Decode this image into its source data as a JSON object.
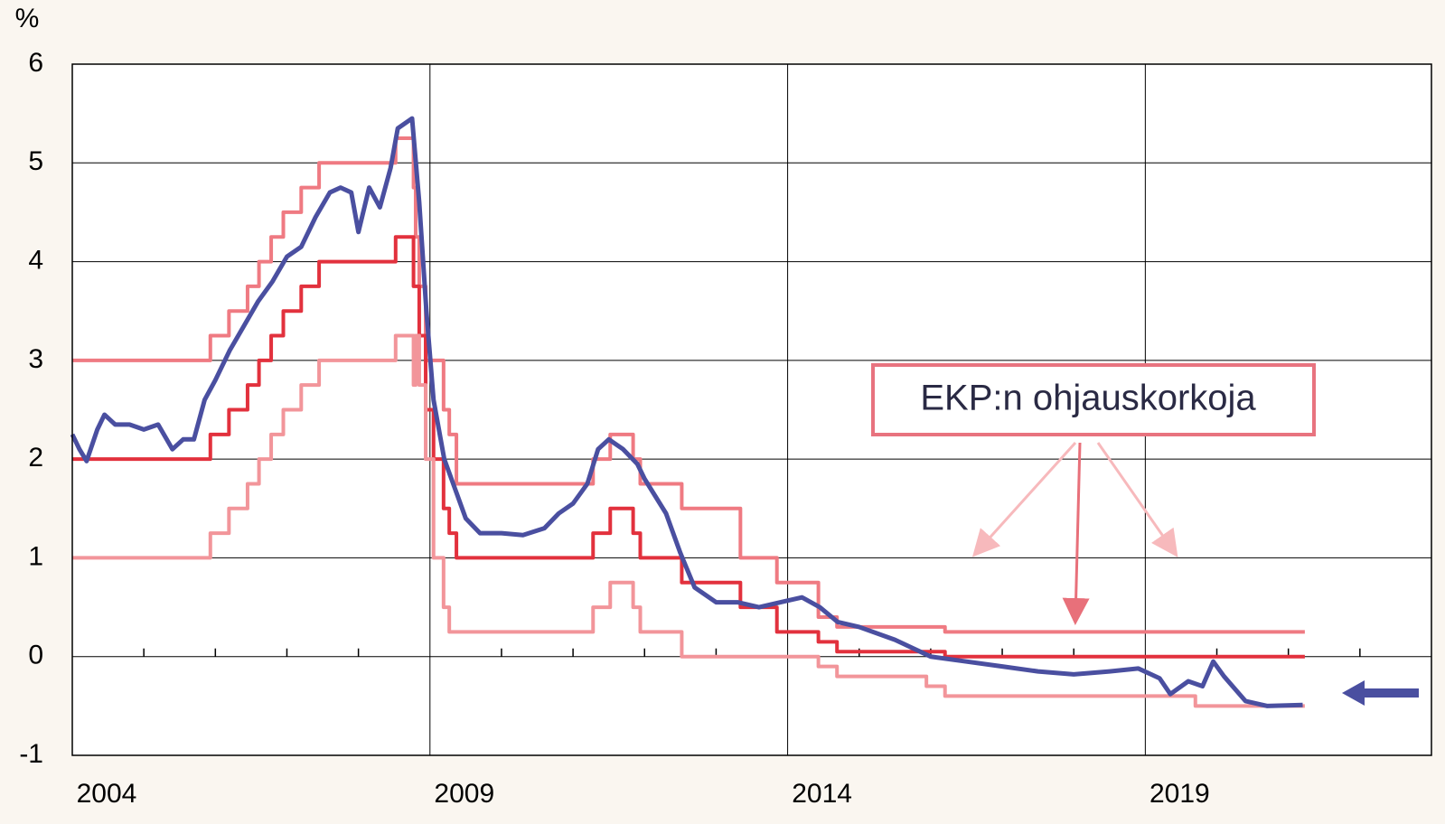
{
  "chart_data": {
    "type": "line",
    "y_label": "%",
    "annotation": "EKP:n ohjauskorkoja",
    "xlim": [
      2004,
      2023
    ],
    "xticks": [
      2004,
      2009,
      2014,
      2019
    ],
    "x_minor_ticks": [
      2005,
      2006,
      2007,
      2008,
      2010,
      2011,
      2012,
      2013,
      2015,
      2016,
      2017,
      2018,
      2020,
      2021,
      2022
    ],
    "ylim": [
      -1,
      6
    ],
    "yticks": [
      -1,
      0,
      1,
      2,
      3,
      4,
      5,
      6
    ],
    "grid": true,
    "series": [
      {
        "color": "#ef7a82",
        "step": true,
        "x": [
          2004,
          2005.93,
          2006.19,
          2006.45,
          2006.61,
          2006.78,
          2006.95,
          2007.2,
          2007.45,
          2008.52,
          2008.77,
          2008.8,
          2008.85,
          2008.94,
          2009.05,
          2009.19,
          2009.27,
          2009.37,
          2011.28,
          2011.52,
          2011.84,
          2011.94,
          2012.52,
          2013.34,
          2013.85,
          2014.43,
          2014.69,
          2016.2,
          2021.23
        ],
        "values": [
          3.0,
          3.25,
          3.5,
          3.75,
          4.0,
          4.25,
          4.5,
          4.75,
          5.0,
          5.25,
          4.75,
          4.25,
          3.75,
          3.0,
          3.0,
          2.5,
          2.25,
          1.75,
          2.0,
          2.25,
          2.0,
          1.75,
          1.5,
          1.0,
          0.75,
          0.4,
          0.3,
          0.25,
          0.25
        ]
      },
      {
        "color": "#e2313d",
        "step": true,
        "x": [
          2004,
          2005.93,
          2006.19,
          2006.45,
          2006.61,
          2006.78,
          2006.95,
          2007.2,
          2007.45,
          2008.52,
          2008.77,
          2008.85,
          2008.94,
          2009.05,
          2009.19,
          2009.27,
          2009.37,
          2011.28,
          2011.52,
          2011.84,
          2011.94,
          2012.52,
          2013.34,
          2013.85,
          2014.43,
          2014.69,
          2016.2,
          2021.23
        ],
        "values": [
          2.0,
          2.25,
          2.5,
          2.75,
          3.0,
          3.25,
          3.5,
          3.75,
          4.0,
          4.25,
          3.75,
          3.25,
          2.5,
          2.0,
          1.5,
          1.25,
          1.0,
          1.25,
          1.5,
          1.25,
          1.0,
          0.75,
          0.5,
          0.25,
          0.15,
          0.05,
          0.0,
          0.0
        ]
      },
      {
        "color": "#f2959a",
        "step": true,
        "x": [
          2004,
          2005.93,
          2006.19,
          2006.45,
          2006.61,
          2006.78,
          2006.95,
          2007.2,
          2007.45,
          2008.52,
          2008.77,
          2008.8,
          2008.85,
          2008.94,
          2009.05,
          2009.19,
          2009.27,
          2011.28,
          2011.52,
          2011.84,
          2011.94,
          2012.52,
          2014.43,
          2014.69,
          2015.94,
          2016.2,
          2019.7,
          2021.23
        ],
        "values": [
          1.0,
          1.25,
          1.5,
          1.75,
          2.0,
          2.25,
          2.5,
          2.75,
          3.0,
          3.25,
          2.75,
          3.25,
          2.75,
          2.0,
          1.0,
          0.5,
          0.25,
          0.5,
          0.75,
          0.5,
          0.25,
          0.0,
          -0.1,
          -0.2,
          -0.3,
          -0.4,
          -0.5,
          -0.5
        ]
      },
      {
        "color": "#4a4fa0",
        "step": false,
        "x": [
          2004.0,
          2004.1,
          2004.2,
          2004.35,
          2004.45,
          2004.6,
          2004.8,
          2005.0,
          2005.2,
          2005.4,
          2005.55,
          2005.7,
          2005.85,
          2006.0,
          2006.2,
          2006.4,
          2006.6,
          2006.8,
          2007.0,
          2007.2,
          2007.4,
          2007.6,
          2007.75,
          2007.9,
          2008.0,
          2008.15,
          2008.3,
          2008.45,
          2008.55,
          2008.65,
          2008.75,
          2008.85,
          2008.95,
          2009.05,
          2009.2,
          2009.35,
          2009.5,
          2009.7,
          2010.0,
          2010.3,
          2010.6,
          2010.8,
          2011.0,
          2011.2,
          2011.35,
          2011.5,
          2011.7,
          2011.9,
          2012.0,
          2012.3,
          2012.5,
          2012.7,
          2013.0,
          2013.3,
          2013.6,
          2013.9,
          2014.2,
          2014.45,
          2014.7,
          2015.0,
          2015.5,
          2016.0,
          2016.5,
          2017.0,
          2017.5,
          2018.0,
          2018.5,
          2018.9,
          2019.2,
          2019.35,
          2019.6,
          2019.8,
          2019.95,
          2020.1,
          2020.4,
          2020.7,
          2021.2
        ],
        "values": [
          2.25,
          2.1,
          1.98,
          2.3,
          2.45,
          2.35,
          2.35,
          2.3,
          2.35,
          2.1,
          2.2,
          2.2,
          2.6,
          2.8,
          3.1,
          3.35,
          3.6,
          3.8,
          4.05,
          4.15,
          4.45,
          4.7,
          4.75,
          4.7,
          4.3,
          4.75,
          4.55,
          4.95,
          5.35,
          5.4,
          5.45,
          4.6,
          3.5,
          2.6,
          2.0,
          1.7,
          1.4,
          1.25,
          1.25,
          1.23,
          1.3,
          1.45,
          1.55,
          1.75,
          2.1,
          2.2,
          2.1,
          1.95,
          1.8,
          1.45,
          1.05,
          0.7,
          0.55,
          0.55,
          0.5,
          0.55,
          0.6,
          0.5,
          0.35,
          0.3,
          0.17,
          0.0,
          -0.05,
          -0.1,
          -0.15,
          -0.18,
          -0.15,
          -0.12,
          -0.22,
          -0.38,
          -0.25,
          -0.3,
          -0.05,
          -0.2,
          -0.45,
          -0.5,
          -0.49
        ]
      }
    ]
  }
}
